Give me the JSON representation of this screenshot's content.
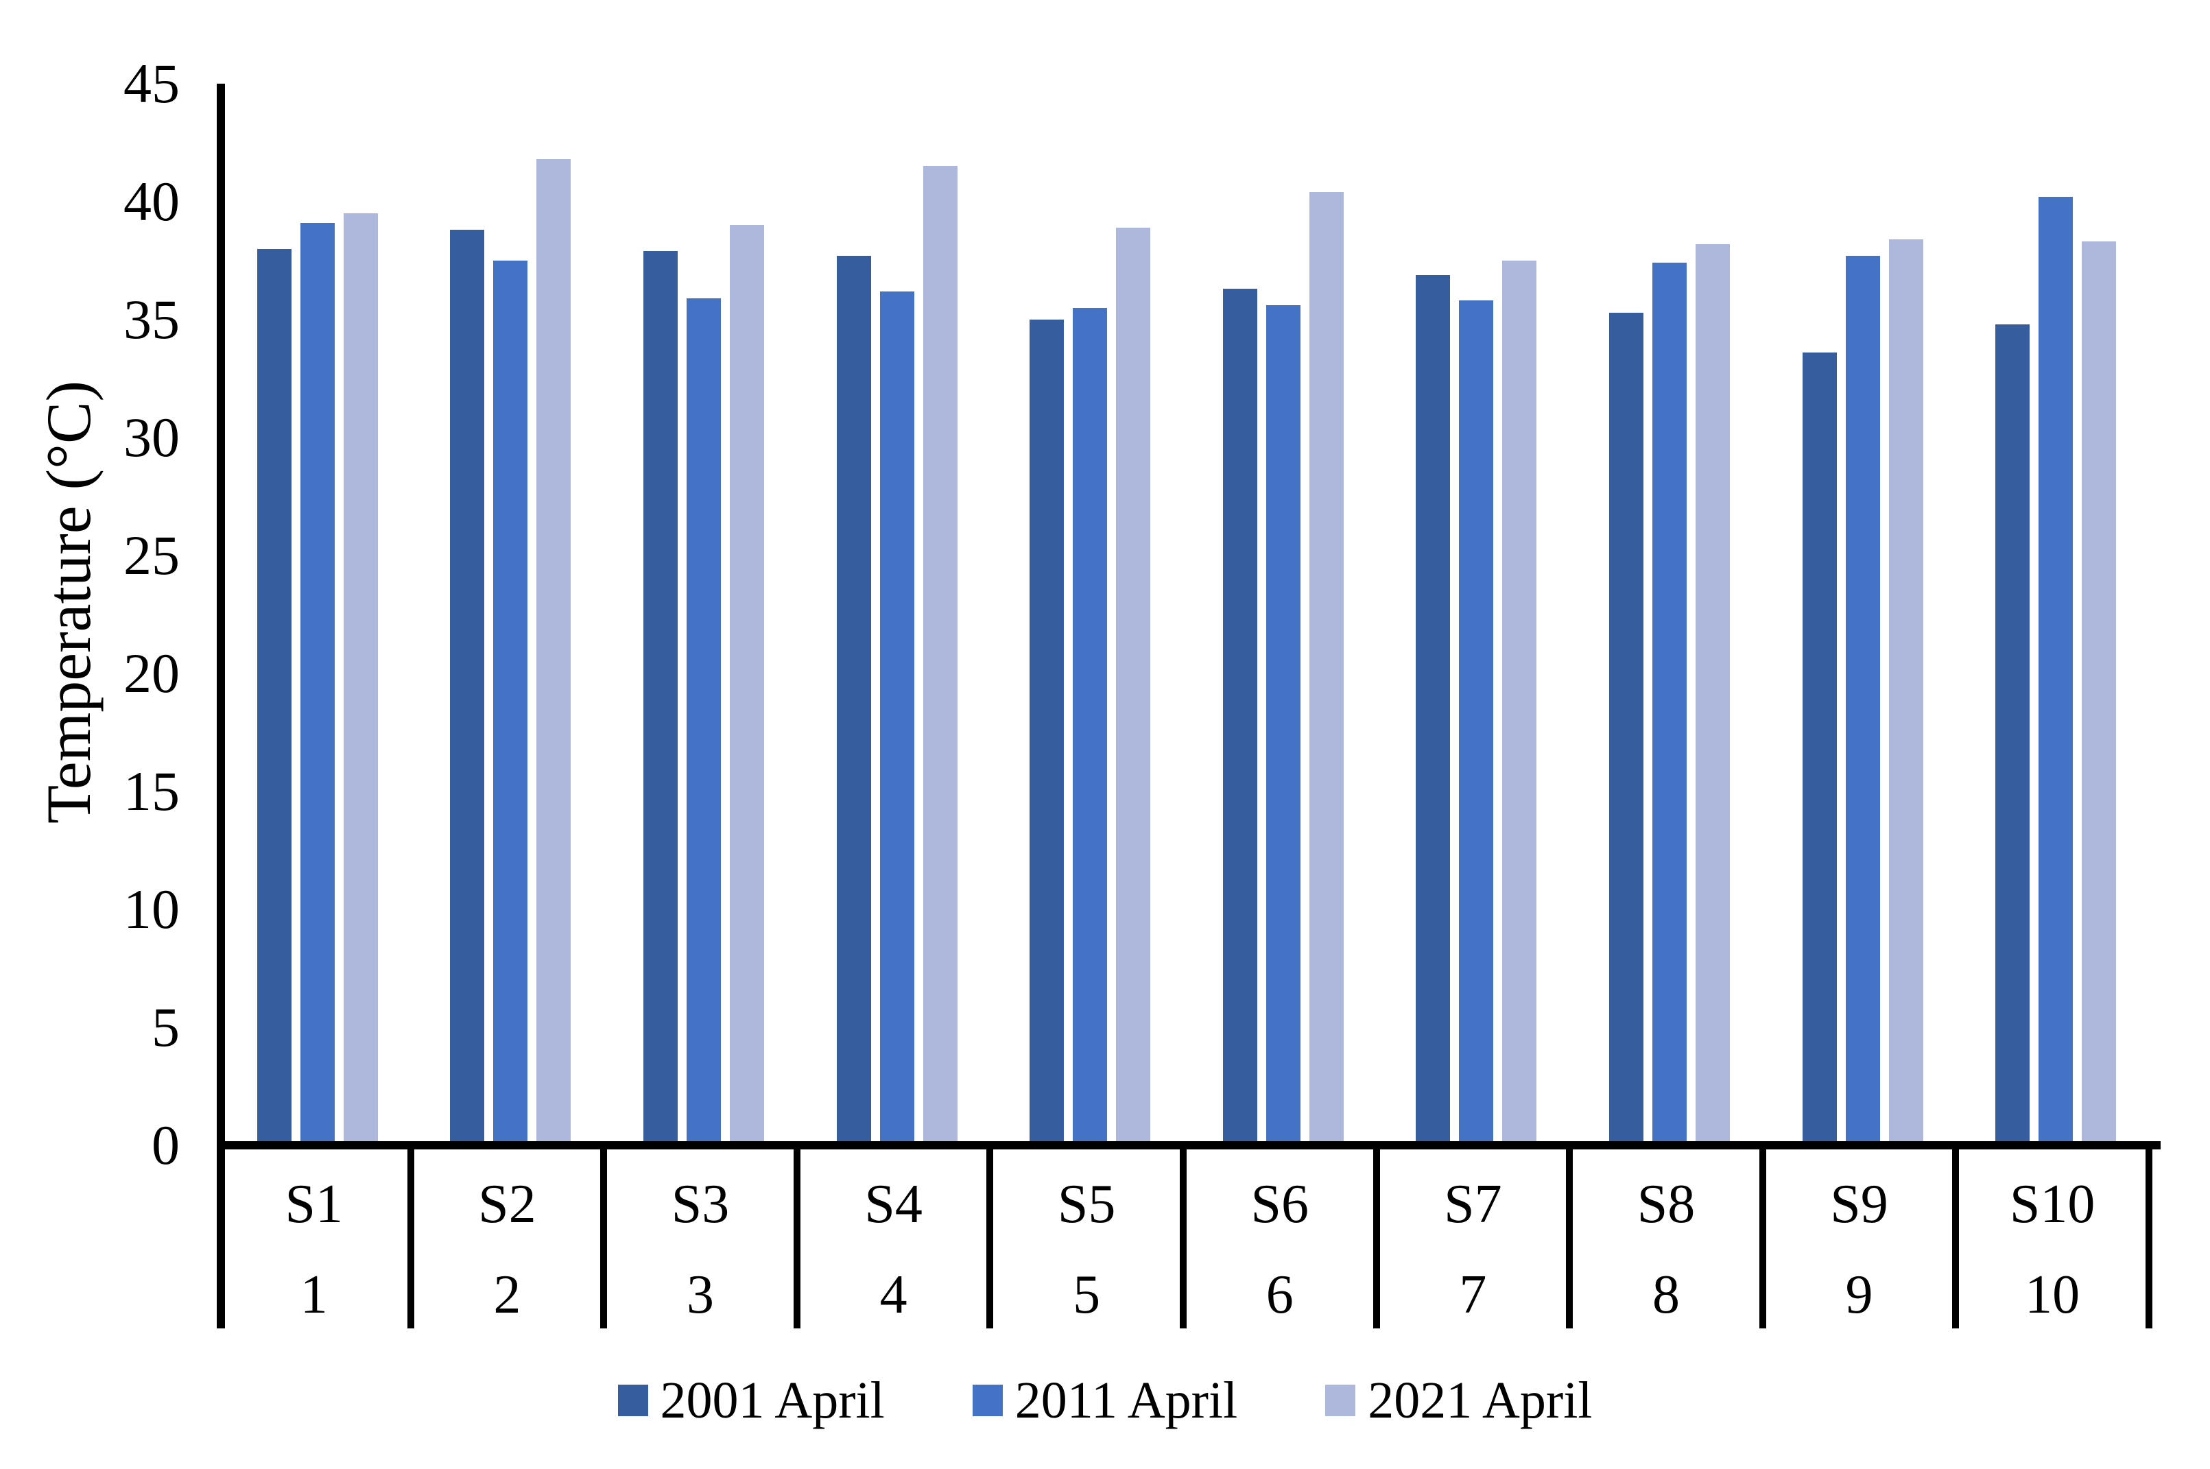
{
  "chart_data": {
    "type": "bar",
    "title": "",
    "ylabel": "Temperature (°C)",
    "ylim": [
      0,
      45
    ],
    "ytick_step": 5,
    "yticks": [
      "45",
      "40",
      "35",
      "30",
      "25",
      "20",
      "15",
      "10",
      "5",
      "0"
    ],
    "grid": false,
    "legend_position": "bottom",
    "categories": [
      "S1",
      "S2",
      "S3",
      "S4",
      "S5",
      "S6",
      "S7",
      "S8",
      "S9",
      "S10"
    ],
    "category_numbers": [
      "1",
      "2",
      "3",
      "4",
      "5",
      "6",
      "7",
      "8",
      "9",
      "10"
    ],
    "series": [
      {
        "name": "2001 April",
        "color": "#365D9D",
        "values": [
          38.0,
          38.8,
          37.9,
          37.7,
          35.0,
          36.3,
          36.9,
          35.3,
          33.6,
          34.8
        ]
      },
      {
        "name": "2011 April",
        "color": "#4472C4",
        "values": [
          39.1,
          37.5,
          35.9,
          36.2,
          35.5,
          35.6,
          35.8,
          37.4,
          37.7,
          40.2
        ]
      },
      {
        "name": "2021 April",
        "color": "#AEB8DC",
        "values": [
          39.5,
          41.8,
          39.0,
          41.5,
          38.9,
          40.4,
          37.5,
          38.2,
          38.4,
          38.3
        ]
      }
    ],
    "axis_color": "#000000",
    "background_color": "#FFFFFF"
  }
}
